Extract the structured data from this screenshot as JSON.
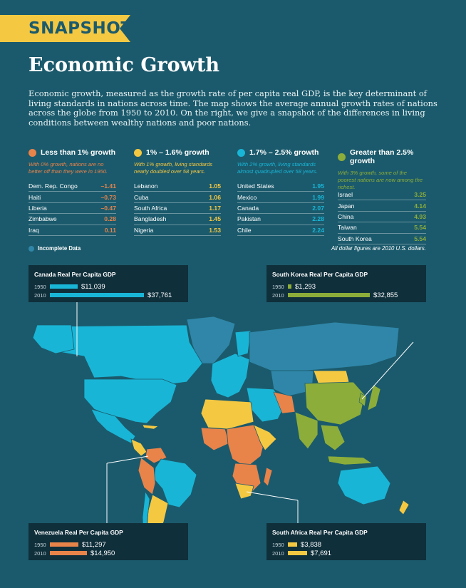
{
  "header": {
    "banner": "SNAPSHOT",
    "title": "Economic Growth",
    "intro": "Economic growth, measured as the growth rate of per capita real GDP, is the key determinant of living standards in nations across time. The map shows the average annual growth rates of nations across the globe from 1950 to 2010. On the right, we give a snapshot of the differences in living conditions between wealthy nations and poor nations."
  },
  "colors": {
    "background": "#1b5a6c",
    "orange": "#e8834a",
    "yellow": "#f5c842",
    "cyan": "#19b5d6",
    "green": "#8dad3a",
    "incomplete": "#2f86a8",
    "callout": "#0f2f3b"
  },
  "legend": [
    {
      "label": "Less than 1% growth",
      "color": "#e8834a",
      "desc": "With 0% growth, nations are no better off than they were in 1950.",
      "rows": [
        {
          "country": "Dem. Rep. Congo",
          "value": "–1.41"
        },
        {
          "country": "Haiti",
          "value": "–0.73"
        },
        {
          "country": "Liberia",
          "value": "–0.47"
        },
        {
          "country": "Zimbabwe",
          "value": "0.28"
        },
        {
          "country": "Iraq",
          "value": "0.11"
        }
      ]
    },
    {
      "label": "1% – 1.6% growth",
      "color": "#f5c842",
      "desc": "With 1% growth, living standards nearly doubled over 58 years.",
      "rows": [
        {
          "country": "Lebanon",
          "value": "1.05"
        },
        {
          "country": "Cuba",
          "value": "1.06"
        },
        {
          "country": "South Africa",
          "value": "1.17"
        },
        {
          "country": "Bangladesh",
          "value": "1.45"
        },
        {
          "country": "Nigeria",
          "value": "1.53"
        }
      ]
    },
    {
      "label": "1.7% – 2.5% growth",
      "color": "#19b5d6",
      "desc": "With 2% growth, living standards almost quadrupled over 58 years.",
      "rows": [
        {
          "country": "United States",
          "value": "1.95"
        },
        {
          "country": "Mexico",
          "value": "1.99"
        },
        {
          "country": "Canada",
          "value": "2.07"
        },
        {
          "country": "Pakistan",
          "value": "2.28"
        },
        {
          "country": "Chile",
          "value": "2.24"
        }
      ]
    },
    {
      "label": "Greater than 2.5% growth",
      "color": "#8dad3a",
      "desc": "With 3% growth, some of the poorest nations are now among the richest.",
      "rows": [
        {
          "country": "Israel",
          "value": "3.25"
        },
        {
          "country": "Japan",
          "value": "4.14"
        },
        {
          "country": "China",
          "value": "4.93"
        },
        {
          "country": "Taiwan",
          "value": "5.54"
        },
        {
          "country": "South Korea",
          "value": "5.54"
        }
      ]
    }
  ],
  "notes": {
    "incomplete": "Incomplete Data",
    "footnote": "All dollar figures are 2010 U.S. dollars."
  },
  "callouts": [
    {
      "id": "canada",
      "title": "Canada Real Per Capita GDP",
      "color": "#19b5d6",
      "rows": [
        {
          "year": "1950",
          "value": "$11,039",
          "amount": 11039
        },
        {
          "year": "2010",
          "value": "$37,761",
          "amount": 37761
        }
      ]
    },
    {
      "id": "korea",
      "title": "South Korea Real Per Capita GDP",
      "color": "#8dad3a",
      "rows": [
        {
          "year": "1950",
          "value": "$1,293",
          "amount": 1293
        },
        {
          "year": "2010",
          "value": "$32,855",
          "amount": 32855
        }
      ]
    },
    {
      "id": "venezuela",
      "title": "Venezuela Real Per Capita GDP",
      "color": "#e8834a",
      "rows": [
        {
          "year": "1950",
          "value": "$11,297",
          "amount": 11297
        },
        {
          "year": "2010",
          "value": "$14,950",
          "amount": 14950
        }
      ]
    },
    {
      "id": "southafrica",
      "title": "South Africa Real Per Capita GDP",
      "color": "#f5c842",
      "rows": [
        {
          "year": "1950",
          "value": "$3,838",
          "amount": 3838
        },
        {
          "year": "2010",
          "value": "$7,691",
          "amount": 7691
        }
      ]
    }
  ]
}
